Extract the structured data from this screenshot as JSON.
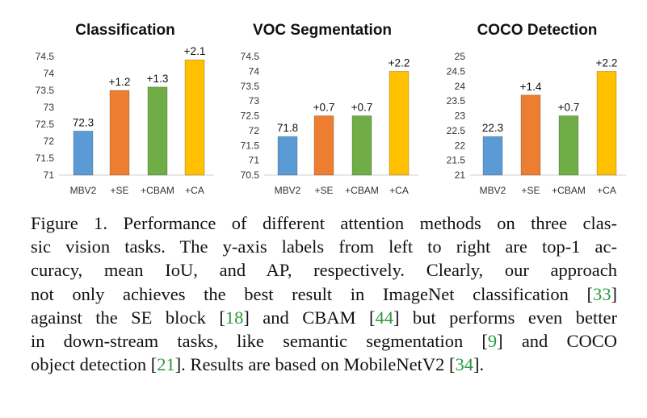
{
  "chart_data": [
    {
      "type": "bar",
      "title": "Classification",
      "categories": [
        "MBV2",
        "+SE",
        "+CBAM",
        "+CA"
      ],
      "values": [
        72.3,
        73.5,
        73.6,
        74.4
      ],
      "data_labels": [
        "72.3",
        "+1.2",
        "+1.3",
        "+2.1"
      ],
      "colors": [
        "#5b9bd5",
        "#ed7d31",
        "#70ad47",
        "#ffc000"
      ],
      "ylim": [
        71,
        74.5
      ],
      "yticks": [
        "71",
        "71.5",
        "72",
        "72.5",
        "73",
        "73.5",
        "74",
        "74.5"
      ],
      "xlabel": "",
      "ylabel": "",
      "grid": false
    },
    {
      "type": "bar",
      "title": "VOC Segmentation",
      "categories": [
        "MBV2",
        "+SE",
        "+CBAM",
        "+CA"
      ],
      "values": [
        71.8,
        72.5,
        72.5,
        74.0
      ],
      "data_labels": [
        "71.8",
        "+0.7",
        "+0.7",
        "+2.2"
      ],
      "colors": [
        "#5b9bd5",
        "#ed7d31",
        "#70ad47",
        "#ffc000"
      ],
      "ylim": [
        70.5,
        74.5
      ],
      "yticks": [
        "70.5",
        "71",
        "71.5",
        "72",
        "72.5",
        "73",
        "73.5",
        "74",
        "74.5"
      ],
      "xlabel": "",
      "ylabel": "",
      "grid": false
    },
    {
      "type": "bar",
      "title": "COCO Detection",
      "categories": [
        "MBV2",
        "+SE",
        "+CBAM",
        "+CA"
      ],
      "values": [
        22.3,
        23.7,
        23.0,
        24.5
      ],
      "data_labels": [
        "22.3",
        "+1.4",
        "+0.7",
        "+2.2"
      ],
      "colors": [
        "#5b9bd5",
        "#ed7d31",
        "#70ad47",
        "#ffc000"
      ],
      "ylim": [
        21,
        25
      ],
      "yticks": [
        "21",
        "21.5",
        "22",
        "22.5",
        "23",
        "23.5",
        "24",
        "24.5",
        "25"
      ],
      "xlabel": "",
      "ylabel": "",
      "grid": false
    }
  ],
  "caption": {
    "lines": [
      [
        {
          "t": "Figure 1. Performance of different attention methods on three clas-"
        }
      ],
      [
        {
          "t": "sic vision tasks.  The y-axis labels from left to right are top-1 ac-"
        }
      ],
      [
        {
          "t": "curacy, mean IoU, and AP, respectively.  Clearly, our approach"
        }
      ],
      [
        {
          "t": "not only achieves the best result in ImageNet classification ["
        },
        {
          "t": "33",
          "c": true
        },
        {
          "t": "]"
        }
      ],
      [
        {
          "t": "against the SE block ["
        },
        {
          "t": "18",
          "c": true
        },
        {
          "t": "] and CBAM ["
        },
        {
          "t": "44",
          "c": true
        },
        {
          "t": "] but performs even better"
        }
      ],
      [
        {
          "t": "in down-stream tasks, like semantic segmentation ["
        },
        {
          "t": "9",
          "c": true
        },
        {
          "t": "] and COCO"
        }
      ],
      [
        {
          "t": "object detection ["
        },
        {
          "t": "21",
          "c": true
        },
        {
          "t": "]. Results are based on MobileNetV2 ["
        },
        {
          "t": "34",
          "c": true
        },
        {
          "t": "]."
        }
      ]
    ]
  },
  "colors": {
    "cite": "#2a9a3c"
  }
}
